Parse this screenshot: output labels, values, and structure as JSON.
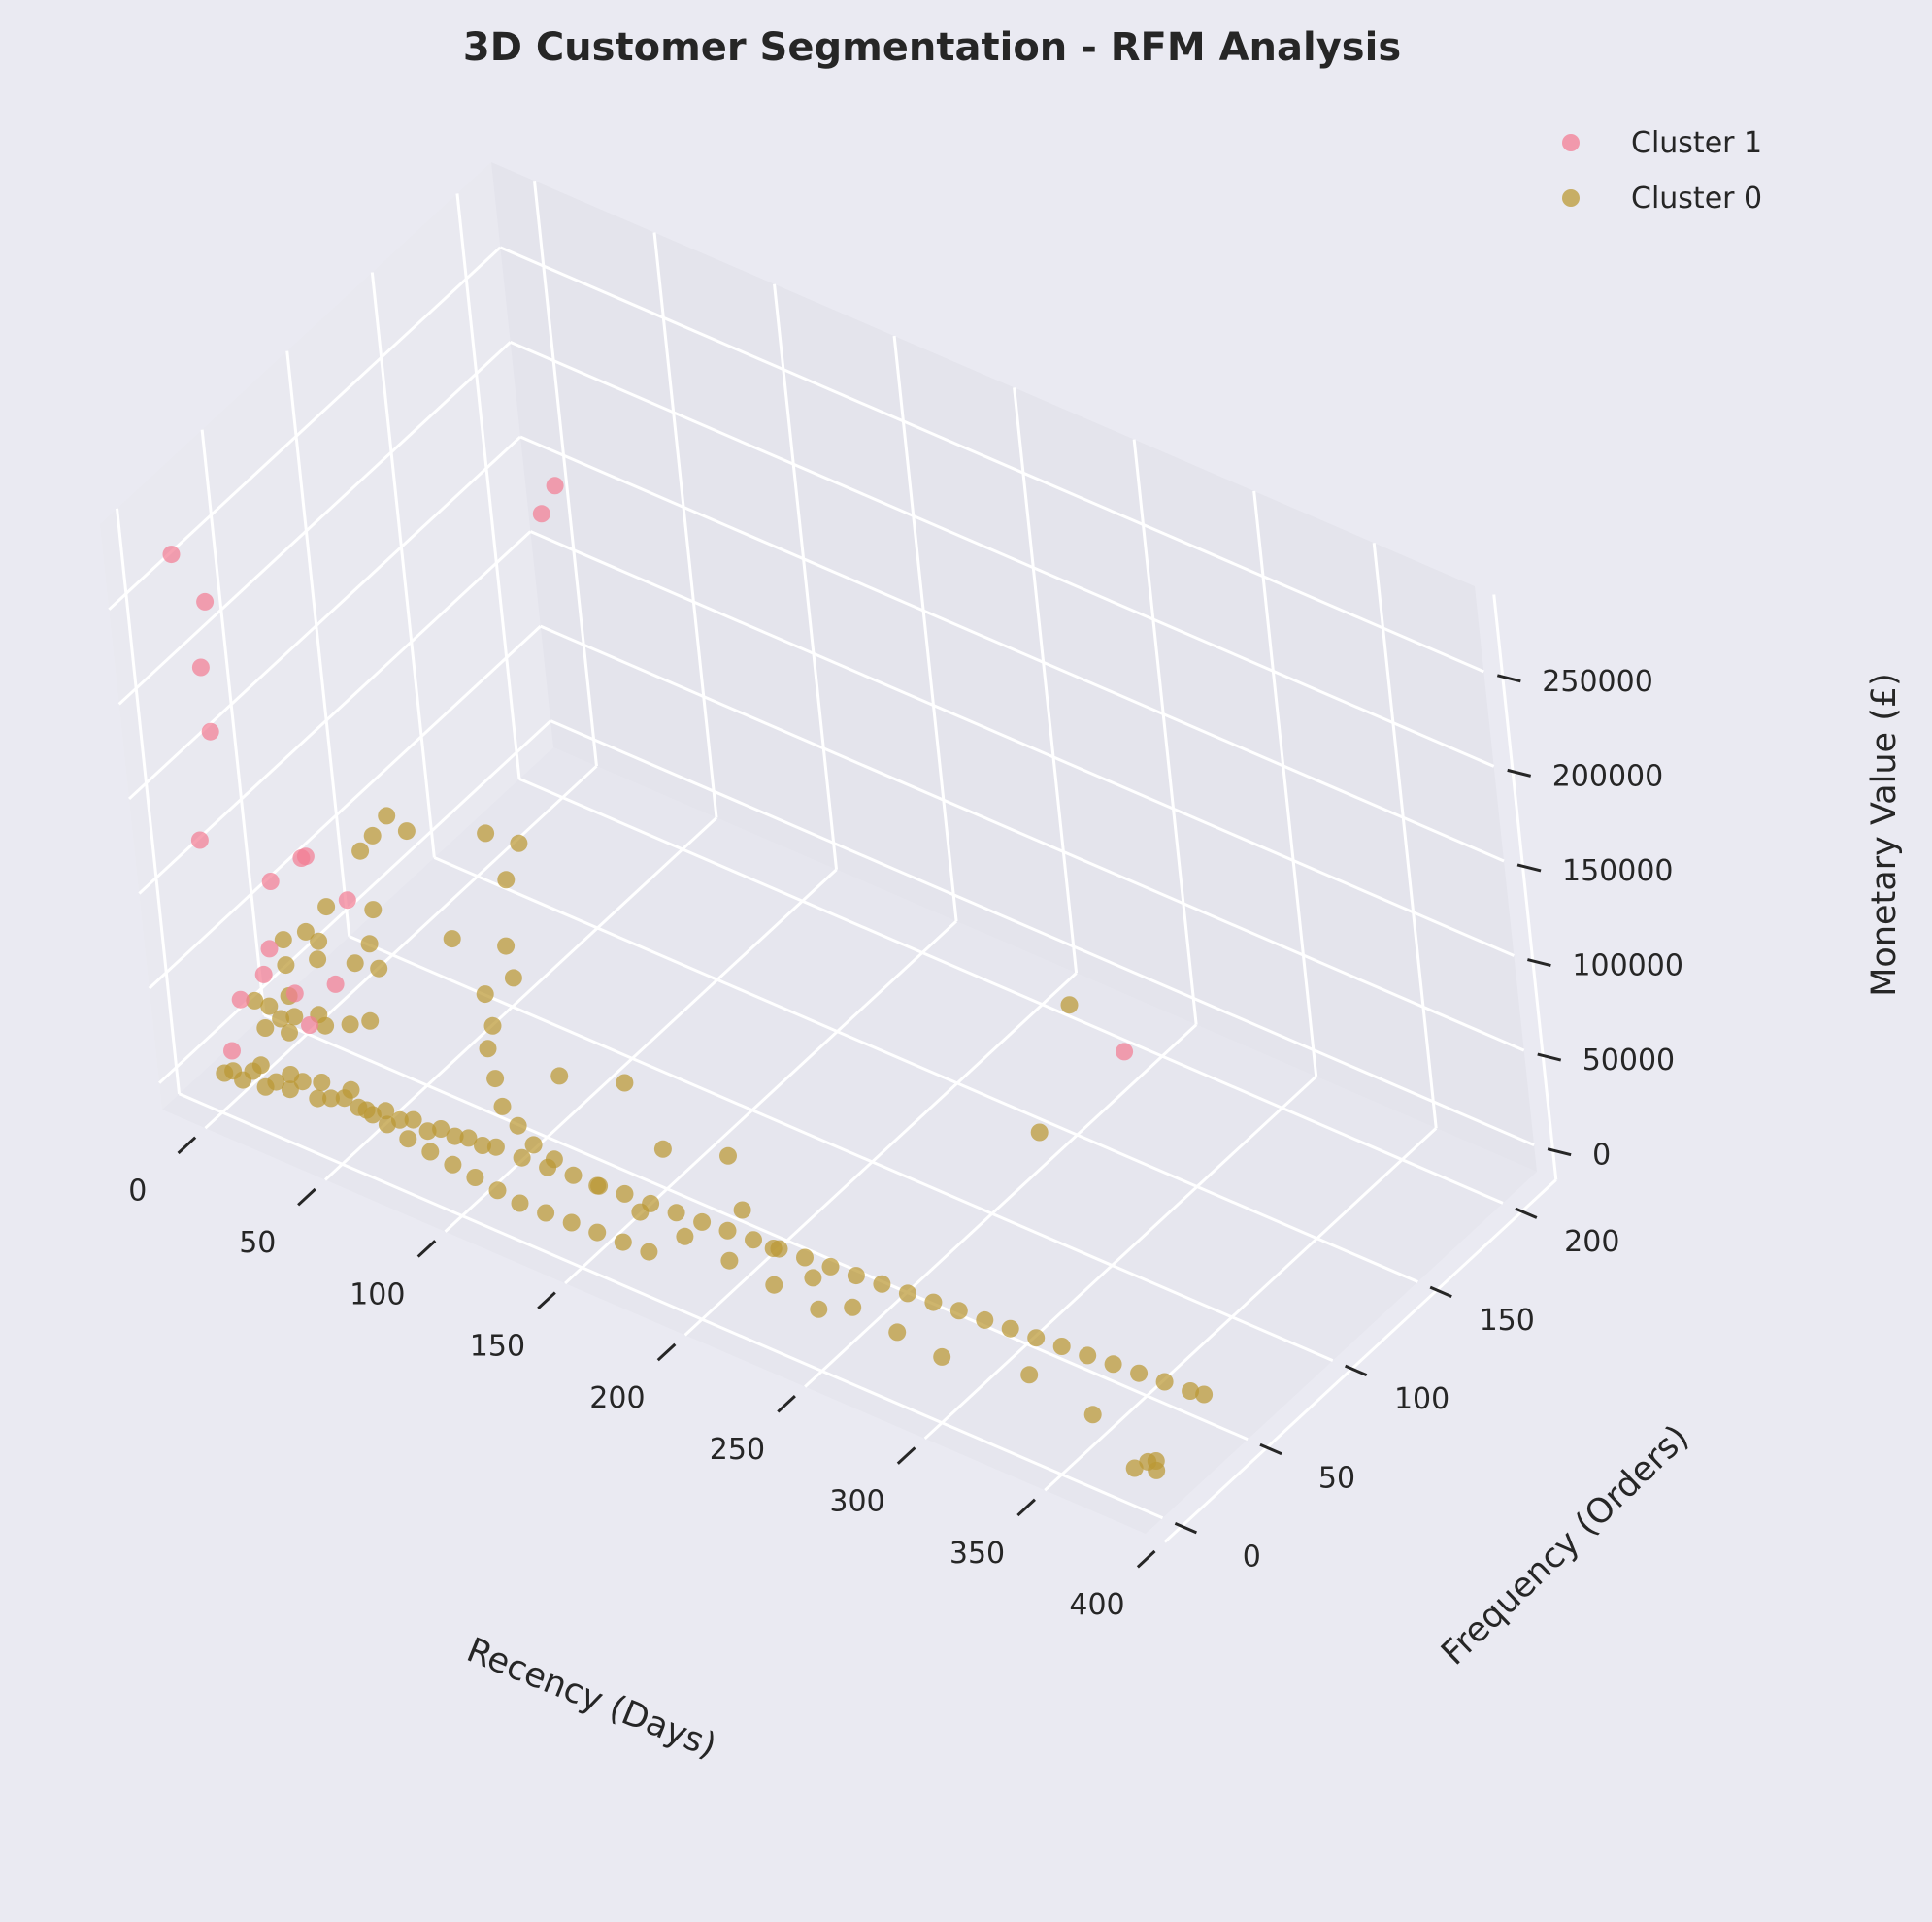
{
  "chart_data": {
    "type": "scatter",
    "title": "3D Customer Segmentation - RFM Analysis",
    "xlabel": "Recency (Days)",
    "ylabel": "Frequency (Orders)",
    "zlabel": "Monetary Value (£)",
    "x_ticks": [
      "0",
      "50",
      "100",
      "150",
      "200",
      "250",
      "300",
      "350",
      "400"
    ],
    "y_ticks": [
      "0",
      "50",
      "100",
      "150",
      "200"
    ],
    "z_ticks": [
      "0",
      "50000",
      "100000",
      "150000",
      "200000",
      "250000"
    ],
    "xlim": [
      -18,
      392
    ],
    "ylim": [
      -10,
      220
    ],
    "zlim": [
      -14000,
      295000
    ],
    "grid": true,
    "legend_position": "top-right",
    "colors": {
      "cluster_1": "#F37E94",
      "cluster_0": "#BB9935",
      "background": "#EAEAF2",
      "pane": "#E6E6EE"
    },
    "series": [
      {
        "name": "Cluster 1",
        "color": "#F37E94",
        "points": [
          [
            2,
            2,
            280000
          ],
          [
            3,
            210,
            144000
          ],
          [
            4,
            200,
            138000
          ],
          [
            2,
            1,
            130000
          ],
          [
            10,
            3,
            190000
          ],
          [
            8,
            4,
            222000
          ],
          [
            12,
            5,
            258000
          ],
          [
            20,
            10,
            75000
          ],
          [
            22,
            12,
            110000
          ],
          [
            18,
            8,
            62000
          ],
          [
            25,
            15,
            50000
          ],
          [
            30,
            20,
            120000
          ],
          [
            32,
            20,
            122000
          ],
          [
            40,
            30,
            95000
          ],
          [
            35,
            25,
            52000
          ],
          [
            30,
            15,
            36000
          ],
          [
            5,
            10,
            40000
          ],
          [
            3,
            5,
            16000
          ],
          [
            250,
            180,
            5000
          ]
        ]
      },
      {
        "name": "Cluster 0",
        "color": "#BB9935",
        "points": [
          [
            2,
            1,
            7000
          ],
          [
            5,
            2,
            9000
          ],
          [
            8,
            3,
            5000
          ],
          [
            12,
            4,
            11000
          ],
          [
            16,
            5,
            4000
          ],
          [
            20,
            6,
            8000
          ],
          [
            25,
            7,
            6000
          ],
          [
            30,
            8,
            12000
          ],
          [
            35,
            9,
            5000
          ],
          [
            40,
            10,
            7000
          ],
          [
            45,
            11,
            9000
          ],
          [
            50,
            12,
            6000
          ],
          [
            55,
            13,
            4000
          ],
          [
            60,
            14,
            8000
          ],
          [
            65,
            15,
            5000
          ],
          [
            70,
            16,
            7000
          ],
          [
            75,
            17,
            3000
          ],
          [
            80,
            18,
            6000
          ],
          [
            85,
            19,
            4000
          ],
          [
            90,
            20,
            5000
          ],
          [
            95,
            21,
            3000
          ],
          [
            100,
            22,
            4000
          ],
          [
            110,
            23,
            3000
          ],
          [
            120,
            24,
            2500
          ],
          [
            130,
            25,
            3000
          ],
          [
            140,
            26,
            2000
          ],
          [
            150,
            27,
            2500
          ],
          [
            160,
            28,
            2000
          ],
          [
            170,
            29,
            1800
          ],
          [
            180,
            30,
            1500
          ],
          [
            190,
            31,
            1600
          ],
          [
            200,
            32,
            1400
          ],
          [
            210,
            33,
            1200
          ],
          [
            220,
            34,
            1300
          ],
          [
            230,
            35,
            1100
          ],
          [
            240,
            36,
            1000
          ],
          [
            250,
            37,
            1200
          ],
          [
            260,
            38,
            900
          ],
          [
            270,
            39,
            800
          ],
          [
            280,
            40,
            1000
          ],
          [
            290,
            41,
            700
          ],
          [
            300,
            42,
            800
          ],
          [
            310,
            43,
            600
          ],
          [
            320,
            44,
            700
          ],
          [
            330,
            45,
            500
          ],
          [
            340,
            46,
            600
          ],
          [
            350,
            47,
            400
          ],
          [
            360,
            48,
            500
          ],
          [
            370,
            49,
            300
          ],
          [
            375,
            50,
            400
          ],
          [
            3,
            20,
            30000
          ],
          [
            5,
            25,
            24000
          ],
          [
            8,
            18,
            20000
          ],
          [
            10,
            30,
            28000
          ],
          [
            15,
            22,
            18000
          ],
          [
            2,
            40,
            45000
          ],
          [
            6,
            35,
            38000
          ],
          [
            4,
            50,
            42000
          ],
          [
            12,
            45,
            36000
          ],
          [
            20,
            55,
            30000
          ],
          [
            1,
            60,
            27000
          ],
          [
            7,
            28,
            16000
          ],
          [
            9,
            33,
            14000
          ],
          [
            14,
            40,
            12000
          ],
          [
            18,
            38,
            10000
          ],
          [
            24,
            44,
            9000
          ],
          [
            28,
            50,
            8000
          ],
          [
            15,
            70,
            25000
          ],
          [
            10,
            80,
            32000
          ],
          [
            22,
            65,
            20000
          ],
          [
            5,
            90,
            60000
          ],
          [
            3,
            85,
            55000
          ],
          [
            8,
            95,
            68000
          ],
          [
            12,
            100,
            58000
          ],
          [
            6,
            60,
            48000
          ],
          [
            30,
            120,
            50000
          ],
          [
            40,
            125,
            46000
          ],
          [
            45,
            110,
            42000
          ],
          [
            35,
            90,
            22000
          ],
          [
            50,
            100,
            18000
          ],
          [
            55,
            80,
            12000
          ],
          [
            60,
            90,
            15000
          ],
          [
            65,
            70,
            9000
          ],
          [
            70,
            60,
            8000
          ],
          [
            80,
            50,
            6000
          ],
          [
            90,
            40,
            5000
          ],
          [
            100,
            35,
            4500
          ],
          [
            110,
            30,
            4000
          ],
          [
            120,
            28,
            3500
          ],
          [
            140,
            25,
            3000
          ],
          [
            160,
            22,
            2500
          ],
          [
            180,
            20,
            2200
          ],
          [
            200,
            18,
            2000
          ],
          [
            220,
            16,
            1800
          ],
          [
            240,
            14,
            1500
          ],
          [
            100,
            60,
            10000
          ],
          [
            120,
            70,
            9000
          ],
          [
            150,
            50,
            7000
          ],
          [
            170,
            60,
            6000
          ],
          [
            190,
            40,
            5000
          ],
          [
            210,
            30,
            4000
          ],
          [
            230,
            25,
            3500
          ],
          [
            250,
            20,
            3000
          ],
          [
            270,
            18,
            2500
          ],
          [
            290,
            16,
            2000
          ],
          [
            250,
            130,
            4000
          ],
          [
            220,
            190,
            5000
          ],
          [
            320,
            25,
            1500
          ],
          [
            350,
            20,
            1000
          ],
          [
            380,
            10,
            800
          ],
          [
            385,
            8,
            600
          ],
          [
            378,
            5,
            500
          ],
          [
            382,
            12,
            700
          ],
          [
            15,
            5,
            15000
          ],
          [
            25,
            8,
            13000
          ],
          [
            35,
            12,
            11000
          ],
          [
            45,
            15,
            10000
          ],
          [
            55,
            10,
            9000
          ],
          [
            65,
            8,
            8500
          ],
          [
            75,
            6,
            8000
          ],
          [
            85,
            5,
            7500
          ],
          [
            95,
            4,
            7000
          ],
          [
            105,
            3,
            6500
          ],
          [
            115,
            2,
            6000
          ],
          [
            125,
            1,
            5500
          ],
          [
            135,
            2,
            5000
          ],
          [
            145,
            3,
            4500
          ],
          [
            155,
            4,
            4000
          ],
          [
            165,
            5,
            3500
          ],
          [
            175,
            6,
            3000
          ]
        ]
      }
    ]
  }
}
